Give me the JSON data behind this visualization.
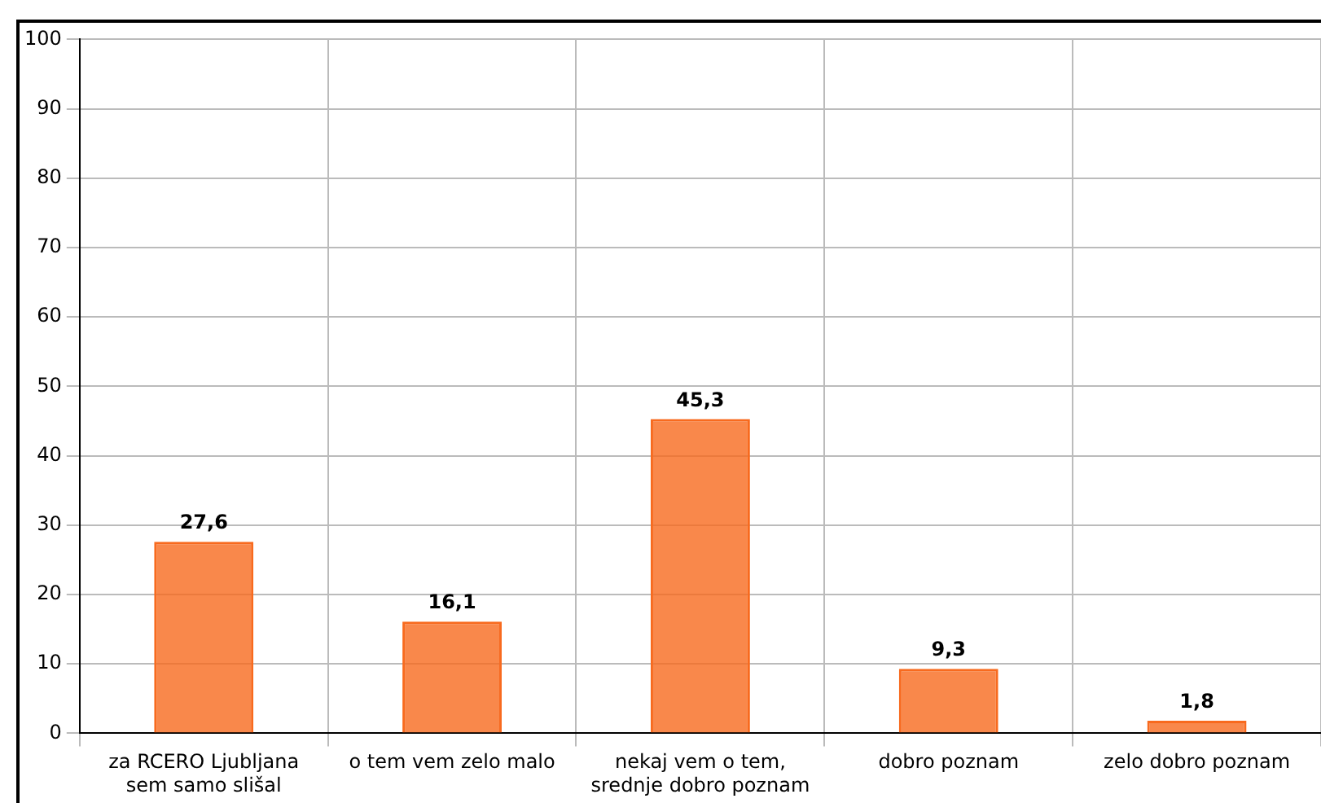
{
  "chart_data": {
    "type": "bar",
    "categories": [
      "za RCERO Ljubljana sem samo slišal",
      "o tem vem zelo malo",
      "nekaj vem o tem, srednje dobro poznam",
      "dobro poznam",
      "zelo dobro poznam"
    ],
    "values": [
      27.6,
      16.1,
      45.3,
      9.3,
      1.8
    ],
    "value_labels": [
      "27,6",
      "16,1",
      "45,3",
      "9,3",
      "1,8"
    ],
    "color": "#f86a1e",
    "ylim": [
      0,
      100
    ],
    "yticks": [
      0,
      10,
      20,
      30,
      40,
      50,
      60,
      70,
      80,
      90,
      100
    ],
    "grid": true,
    "legend": false
  }
}
